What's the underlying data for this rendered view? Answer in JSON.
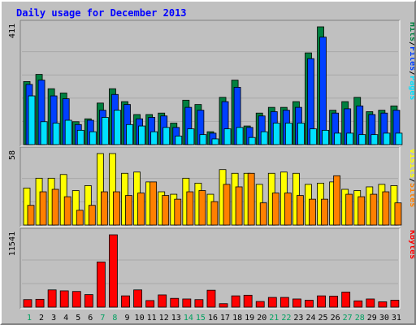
{
  "title": "Daily usage for December 2013",
  "colors": {
    "background": "#c0c0c0",
    "panel": "#c0c0c0",
    "pages": "#00e0ff",
    "files": "#0040ff",
    "hits": "#008040",
    "sites": "#ff8000",
    "visits": "#ffff00",
    "kbytes": "#ff0000",
    "weekend_day": "#00a060",
    "weekday_day": "#000000",
    "title": "#0000ff"
  },
  "chart_data": [
    {
      "type": "bar",
      "name": "hits-files-pages",
      "categories": [
        "1",
        "2",
        "3",
        "4",
        "5",
        "6",
        "7",
        "8",
        "9",
        "10",
        "11",
        "12",
        "13",
        "14",
        "15",
        "16",
        "17",
        "18",
        "19",
        "20",
        "21",
        "22",
        "23",
        "24",
        "25",
        "26",
        "27",
        "28",
        "29",
        "30",
        "31"
      ],
      "weekend_days": [
        "1",
        "7",
        "8",
        "14",
        "15",
        "21",
        "22",
        "27",
        "28"
      ],
      "series": [
        {
          "name": "Hits",
          "values": [
            220,
            245,
            195,
            180,
            80,
            90,
            145,
            195,
            150,
            105,
            105,
            110,
            75,
            155,
            140,
            45,
            165,
            225,
            65,
            110,
            130,
            130,
            150,
            320,
            411,
            120,
            150,
            165,
            115,
            120,
            135
          ]
        },
        {
          "name": "Files",
          "values": [
            210,
            225,
            170,
            160,
            70,
            85,
            120,
            175,
            140,
            90,
            95,
            100,
            60,
            130,
            120,
            40,
            150,
            200,
            60,
            100,
            115,
            120,
            130,
            300,
            375,
            110,
            125,
            135,
            105,
            110,
            120
          ]
        },
        {
          "name": "Pages",
          "values": [
            170,
            80,
            75,
            85,
            50,
            45,
            95,
            120,
            70,
            65,
            45,
            60,
            30,
            55,
            35,
            20,
            55,
            60,
            25,
            45,
            75,
            75,
            75,
            55,
            50,
            40,
            40,
            35,
            35,
            40,
            40
          ]
        }
      ],
      "ylim": [
        0,
        411
      ],
      "ytick": "411",
      "legend": [
        "Pages",
        "Files",
        "Hits"
      ]
    },
    {
      "type": "bar",
      "name": "visits-sites",
      "categories": [
        "1",
        "2",
        "3",
        "4",
        "5",
        "6",
        "7",
        "8",
        "9",
        "10",
        "11",
        "12",
        "13",
        "14",
        "15",
        "16",
        "17",
        "18",
        "19",
        "20",
        "21",
        "22",
        "23",
        "24",
        "25",
        "26",
        "27",
        "28",
        "29",
        "30",
        "31"
      ],
      "series": [
        {
          "name": "Visits",
          "values": [
            30,
            38,
            38,
            41,
            28,
            32,
            58,
            58,
            42,
            43,
            35,
            27,
            25,
            38,
            34,
            25,
            45,
            42,
            42,
            33,
            42,
            43,
            42,
            33,
            34,
            35,
            29,
            28,
            31,
            33,
            32
          ]
        },
        {
          "name": "Sites",
          "values": [
            16,
            27,
            29,
            23,
            12,
            16,
            27,
            27,
            24,
            26,
            35,
            24,
            21,
            27,
            28,
            19,
            33,
            31,
            42,
            18,
            26,
            26,
            24,
            21,
            21,
            40,
            25,
            23,
            25,
            27,
            18
          ]
        }
      ],
      "ylim": [
        0,
        58
      ],
      "ytick": "58",
      "legend": [
        "Sites",
        "Visits"
      ]
    },
    {
      "type": "bar",
      "name": "kbytes",
      "categories": [
        "1",
        "2",
        "3",
        "4",
        "5",
        "6",
        "7",
        "8",
        "9",
        "10",
        "11",
        "12",
        "13",
        "14",
        "15",
        "16",
        "17",
        "18",
        "19",
        "20",
        "21",
        "22",
        "23",
        "24",
        "25",
        "26",
        "27",
        "28",
        "29",
        "30",
        "31"
      ],
      "series": [
        {
          "name": "KBytes",
          "values": [
            1200,
            1250,
            2750,
            2600,
            2500,
            2000,
            7200,
            11541,
            1800,
            2750,
            1050,
            1950,
            1400,
            1300,
            1200,
            2700,
            550,
            1800,
            1900,
            900,
            1550,
            1550,
            1300,
            1100,
            1800,
            1750,
            2400,
            1000,
            1300,
            850,
            1100
          ]
        }
      ],
      "ylim": [
        0,
        11541
      ],
      "ytick": "11541",
      "legend": [
        "KBytes"
      ]
    }
  ]
}
